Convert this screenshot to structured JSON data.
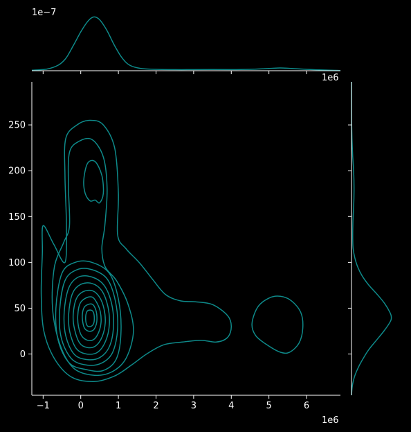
{
  "chart_data": {
    "type": "kde-jointplot",
    "background": "#000000",
    "foreground": "#ffffff",
    "line_color": "#0e8a8a",
    "grid": false,
    "joint": {
      "type": "contour",
      "xlim": [
        -1300000,
        6900000
      ],
      "ylim": [
        -45,
        297
      ],
      "x_ticks": [
        -1,
        0,
        1,
        2,
        3,
        4,
        5,
        6
      ],
      "x_tick_labels": [
        "−1",
        "0",
        "1",
        "2",
        "3",
        "4",
        "5",
        "6"
      ],
      "x_offset_label": "1e6",
      "x_top_offset_label": "1e6",
      "y_ticks": [
        0,
        50,
        100,
        150,
        200,
        250
      ],
      "y_tick_labels": [
        "0",
        "50",
        "100",
        "150",
        "200",
        "250"
      ],
      "contours": [
        {
          "level": 1,
          "points": [
            [
              -1000000,
              140
            ],
            [
              -720000,
              120
            ],
            [
              -420000,
              100
            ],
            [
              -380000,
              140
            ],
            [
              -420000,
              195
            ],
            [
              -400000,
              235
            ],
            [
              -100000,
              250
            ],
            [
              250000,
              255
            ],
            [
              600000,
              250
            ],
            [
              900000,
              225
            ],
            [
              1000000,
              175
            ],
            [
              980000,
              130
            ],
            [
              1200000,
              115
            ],
            [
              1550000,
              100
            ],
            [
              1900000,
              82
            ],
            [
              2250000,
              65
            ],
            [
              2650000,
              58
            ],
            [
              3050000,
              57
            ],
            [
              3500000,
              54
            ],
            [
              3900000,
              42
            ],
            [
              4000000,
              30
            ],
            [
              3900000,
              18
            ],
            [
              3600000,
              13
            ],
            [
              3200000,
              15
            ],
            [
              2700000,
              13
            ],
            [
              2200000,
              10
            ],
            [
              1750000,
              0
            ],
            [
              1350000,
              -12
            ],
            [
              900000,
              -24
            ],
            [
              350000,
              -30
            ],
            [
              -250000,
              -25
            ],
            [
              -700000,
              -5
            ],
            [
              -980000,
              25
            ],
            [
              -1050000,
              65
            ],
            [
              -1020000,
              110
            ]
          ]
        },
        {
          "level": 2,
          "points": [
            [
              -330000,
              185
            ],
            [
              -300000,
              220
            ],
            [
              -50000,
              232
            ],
            [
              300000,
              234
            ],
            [
              600000,
              215
            ],
            [
              700000,
              180
            ],
            [
              640000,
              140
            ],
            [
              560000,
              115
            ],
            [
              650000,
              95
            ],
            [
              950000,
              80
            ],
            [
              1250000,
              55
            ],
            [
              1400000,
              25
            ],
            [
              1200000,
              -5
            ],
            [
              800000,
              -20
            ],
            [
              300000,
              -23
            ],
            [
              -200000,
              -15
            ],
            [
              -550000,
              10
            ],
            [
              -750000,
              50
            ],
            [
              -700000,
              95
            ],
            [
              -450000,
              122
            ],
            [
              -300000,
              140
            ]
          ]
        },
        {
          "level": 3,
          "points": [
            [
              80000,
              190
            ],
            [
              180000,
              208
            ],
            [
              380000,
              210
            ],
            [
              560000,
              195
            ],
            [
              600000,
              175
            ],
            [
              500000,
              165
            ],
            [
              380000,
              168
            ],
            [
              250000,
              167
            ],
            [
              120000,
              175
            ]
          ]
        },
        {
          "level": 4,
          "points": [
            [
              -660000,
              50
            ],
            [
              -500000,
              88
            ],
            [
              -150000,
              100
            ],
            [
              300000,
              100
            ],
            [
              760000,
              88
            ],
            [
              1000000,
              60
            ],
            [
              1070000,
              25
            ],
            [
              950000,
              -5
            ],
            [
              600000,
              -18
            ],
            [
              150000,
              -17
            ],
            [
              -300000,
              -10
            ],
            [
              -600000,
              15
            ]
          ]
        },
        {
          "level": 5,
          "points": [
            [
              -560000,
              48
            ],
            [
              -420000,
              80
            ],
            [
              -100000,
              92
            ],
            [
              300000,
              92
            ],
            [
              700000,
              82
            ],
            [
              920000,
              58
            ],
            [
              980000,
              28
            ],
            [
              850000,
              2
            ],
            [
              550000,
              -10
            ],
            [
              150000,
              -12
            ],
            [
              -250000,
              -5
            ],
            [
              -520000,
              18
            ]
          ]
        },
        {
          "level": 6,
          "points": [
            [
              -440000,
              46
            ],
            [
              -320000,
              72
            ],
            [
              -60000,
              84
            ],
            [
              300000,
              84
            ],
            [
              620000,
              75
            ],
            [
              820000,
              55
            ],
            [
              870000,
              30
            ],
            [
              760000,
              8
            ],
            [
              500000,
              -4
            ],
            [
              150000,
              -6
            ],
            [
              -180000,
              0
            ],
            [
              -400000,
              20
            ]
          ]
        },
        {
          "level": 7,
          "points": [
            [
              -320000,
              44
            ],
            [
              -220000,
              66
            ],
            [
              0,
              76
            ],
            [
              300000,
              77
            ],
            [
              560000,
              69
            ],
            [
              720000,
              52
            ],
            [
              760000,
              32
            ],
            [
              660000,
              14
            ],
            [
              450000,
              2
            ],
            [
              150000,
              0
            ],
            [
              -120000,
              6
            ],
            [
              -290000,
              24
            ]
          ]
        },
        {
          "level": 8,
          "points": [
            [
              -200000,
              43
            ],
            [
              -120000,
              60
            ],
            [
              60000,
              68
            ],
            [
              310000,
              69
            ],
            [
              500000,
              62
            ],
            [
              620000,
              49
            ],
            [
              650000,
              34
            ],
            [
              570000,
              19
            ],
            [
              400000,
              9
            ],
            [
              180000,
              7
            ],
            [
              -30000,
              12
            ],
            [
              -170000,
              28
            ]
          ]
        },
        {
          "level": 9,
          "points": [
            [
              -80000,
              42
            ],
            [
              -20000,
              55
            ],
            [
              130000,
              61
            ],
            [
              310000,
              62
            ],
            [
              440000,
              55
            ],
            [
              520000,
              46
            ],
            [
              540000,
              35
            ],
            [
              480000,
              24
            ],
            [
              350000,
              16
            ],
            [
              180000,
              15
            ],
            [
              20000,
              20
            ],
            [
              -60000,
              30
            ]
          ]
        },
        {
          "level": 10,
          "points": [
            [
              40000,
              40
            ],
            [
              80000,
              50
            ],
            [
              190000,
              54
            ],
            [
              320000,
              54
            ],
            [
              400000,
              48
            ],
            [
              430000,
              40
            ],
            [
              410000,
              32
            ],
            [
              330000,
              26
            ],
            [
              200000,
              25
            ],
            [
              90000,
              29
            ]
          ]
        },
        {
          "level": 11,
          "points": [
            [
              130000,
              38
            ],
            [
              160000,
              46
            ],
            [
              250000,
              48
            ],
            [
              330000,
              46
            ],
            [
              360000,
              40
            ],
            [
              340000,
              33
            ],
            [
              260000,
              30
            ],
            [
              170000,
              31
            ]
          ]
        },
        {
          "level": 12,
          "points": [
            [
              4550000,
              33
            ],
            [
              4700000,
              51
            ],
            [
              5000000,
              61
            ],
            [
              5300000,
              63
            ],
            [
              5600000,
              58
            ],
            [
              5850000,
              45
            ],
            [
              5900000,
              28
            ],
            [
              5800000,
              12
            ],
            [
              5550000,
              2
            ],
            [
              5300000,
              2
            ],
            [
              4950000,
              10
            ],
            [
              4650000,
              20
            ]
          ]
        }
      ]
    },
    "marginal_x": {
      "offset_label": "1e−7",
      "ylim": [
        0,
        1
      ],
      "x": [
        -1300000,
        -900000,
        -600000,
        -400000,
        -200000,
        0,
        200000,
        350000,
        500000,
        700000,
        900000,
        1100000,
        1300000,
        1600000,
        2000000,
        2500000,
        3000000,
        3500000,
        4000000,
        4500000,
        5000000,
        5300000,
        5600000,
        6000000,
        6500000,
        6900000
      ],
      "density": [
        0.01,
        0.03,
        0.1,
        0.22,
        0.45,
        0.7,
        0.9,
        0.97,
        0.92,
        0.72,
        0.45,
        0.23,
        0.1,
        0.04,
        0.025,
        0.02,
        0.02,
        0.022,
        0.02,
        0.025,
        0.04,
        0.05,
        0.04,
        0.025,
        0.012,
        0.005
      ]
    },
    "marginal_y": {
      "ylim": [
        -45,
        297
      ],
      "y": [
        -45,
        -35,
        -25,
        -15,
        -5,
        5,
        15,
        25,
        35,
        40,
        45,
        55,
        65,
        75,
        85,
        95,
        105,
        115,
        125,
        135,
        145,
        155,
        165,
        175,
        185,
        195,
        205,
        215,
        225,
        235,
        245,
        255,
        265,
        280,
        297
      ],
      "density": [
        0.0,
        0.02,
        0.07,
        0.16,
        0.28,
        0.42,
        0.6,
        0.78,
        0.93,
        0.96,
        0.93,
        0.8,
        0.62,
        0.42,
        0.26,
        0.15,
        0.08,
        0.04,
        0.03,
        0.03,
        0.035,
        0.045,
        0.055,
        0.06,
        0.06,
        0.055,
        0.045,
        0.03,
        0.02,
        0.012,
        0.006,
        0.002,
        0.0,
        0.0,
        0.0
      ]
    }
  }
}
